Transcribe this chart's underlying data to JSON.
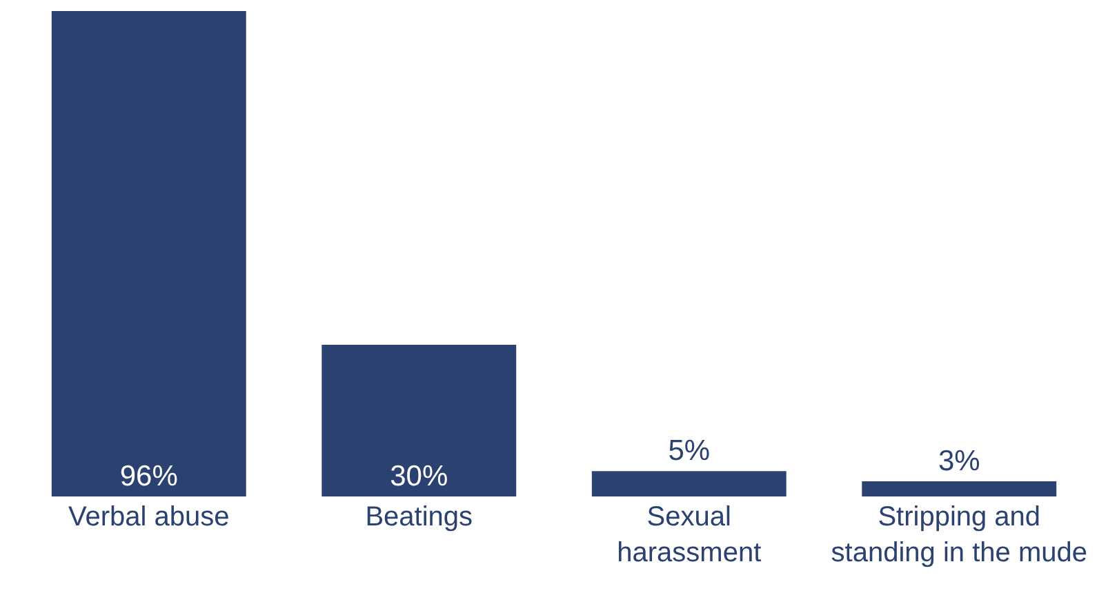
{
  "chart_data": {
    "type": "bar",
    "categories": [
      "Verbal abuse",
      "Beatings",
      "Sexual harassment",
      "Stripping and standing in the mude"
    ],
    "values": [
      96,
      30,
      5,
      3
    ],
    "value_labels": [
      "96%",
      "30%",
      "5%",
      "3%"
    ],
    "color": "#2b4170",
    "legend": false
  }
}
